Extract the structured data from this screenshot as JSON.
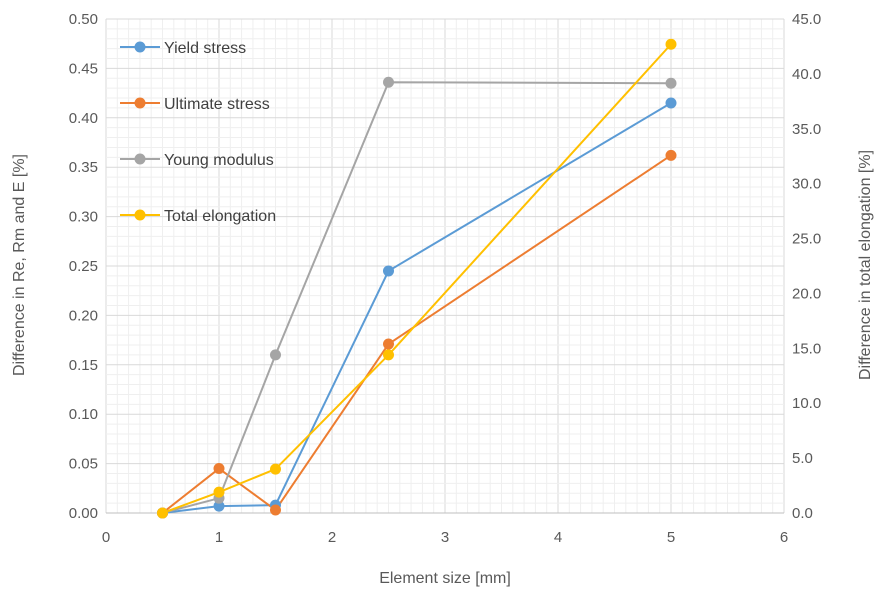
{
  "chart_data": {
    "type": "line",
    "xlabel": "Element size [mm]",
    "ylabel": "Difference  in Re, Rm and E [%]",
    "y2label": "Difference in total elongation [%]",
    "xlim": [
      0,
      6
    ],
    "ylim": [
      0,
      0.5
    ],
    "y2lim": [
      0,
      45
    ],
    "x_ticks": [
      "0",
      "1",
      "2",
      "3",
      "4",
      "5",
      "6"
    ],
    "y_ticks": [
      "0.00",
      "0.05",
      "0.10",
      "0.15",
      "0.20",
      "0.25",
      "0.30",
      "0.35",
      "0.40",
      "0.45",
      "0.50"
    ],
    "y2_ticks": [
      "0.0",
      "5.0",
      "10.0",
      "15.0",
      "20.0",
      "25.0",
      "30.0",
      "35.0",
      "40.0",
      "45.0"
    ],
    "grid": true,
    "legend_position": "top-left",
    "series": [
      {
        "name": "Yield stress",
        "axis": "left",
        "color": "#5B9BD5",
        "x": [
          0.5,
          1,
          1.5,
          2.5,
          5
        ],
        "y": [
          0.0,
          0.007,
          0.008,
          0.245,
          0.415
        ]
      },
      {
        "name": "Ultimate stress",
        "axis": "left",
        "color": "#ED7D31",
        "x": [
          0.5,
          1,
          1.5,
          2.5,
          5
        ],
        "y": [
          0.0,
          0.045,
          0.003,
          0.171,
          0.362
        ]
      },
      {
        "name": "Young modulus",
        "axis": "left",
        "color": "#A5A5A5",
        "x": [
          0.5,
          1,
          1.5,
          2.5,
          5
        ],
        "y": [
          0.0,
          0.015,
          0.16,
          0.436,
          0.435
        ]
      },
      {
        "name": "Total elongation",
        "axis": "right",
        "color": "#FFC000",
        "x": [
          0.5,
          1,
          1.5,
          2.5,
          5
        ],
        "y": [
          0.0,
          1.9,
          4.0,
          14.4,
          42.7
        ]
      }
    ]
  }
}
